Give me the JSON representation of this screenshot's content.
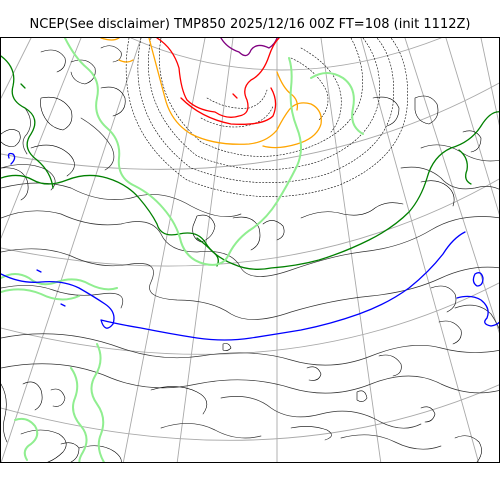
{
  "title": "NCEP(See disclaimer) TMP850 2025/12/16 00Z FT=108 (init 1112Z)",
  "map": {
    "product": "TMP850",
    "valid_time": "2025/12/16 00Z",
    "forecast_hour": 108,
    "init": "1112Z",
    "colors": {
      "coastline": "#000000",
      "graticule": "#a9a9a9",
      "isotherm_black": "#333333",
      "isotherm_dotted": "#000000",
      "isotherm_red": "#ff0000",
      "isotherm_orange": "#ffa500",
      "isotherm_purple": "#800080",
      "isotherm_green": "#008000",
      "isotherm_lightgreen": "#90ee90",
      "isotherm_blue": "#0000ff"
    }
  }
}
